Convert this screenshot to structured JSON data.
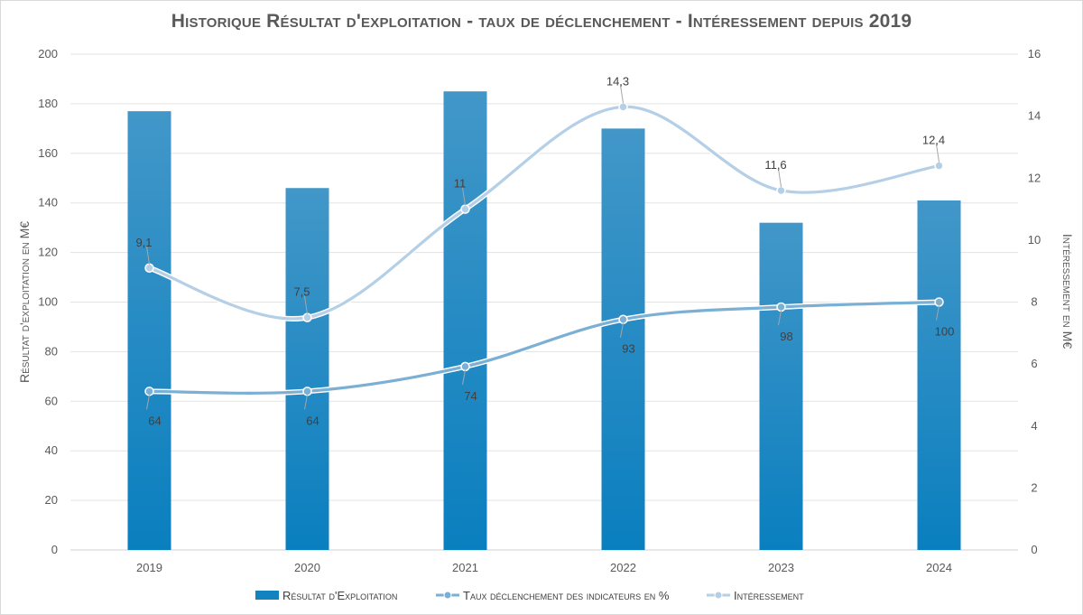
{
  "chart_data": {
    "type": "bar",
    "title": "Historique Résultat d'exploitation - taux de déclenchement - Intéressement depuis 2019",
    "categories": [
      "2019",
      "2020",
      "2021",
      "2022",
      "2023",
      "2024"
    ],
    "ylabel_left": "Résultat d'exploitation en M€",
    "ylabel_right": "Intéressement en M€",
    "ylim_left": [
      0,
      200
    ],
    "yticks_left": [
      0,
      20,
      40,
      60,
      80,
      100,
      120,
      140,
      160,
      180,
      200
    ],
    "ylim_right": [
      0,
      16
    ],
    "yticks_right": [
      0,
      2,
      4,
      6,
      8,
      10,
      12,
      14,
      16
    ],
    "grid": true,
    "legend_position": "bottom",
    "series": [
      {
        "name": "Résultat d'Exploitation",
        "type": "bar",
        "axis": "left",
        "values": [
          177,
          146,
          185,
          170,
          132,
          141
        ],
        "color": "#1383c0"
      },
      {
        "name": "Taux déclenchement des indicateurs en %",
        "type": "line",
        "axis": "left",
        "values": [
          64,
          64,
          74,
          93,
          98,
          100
        ],
        "labels": [
          "64",
          "64",
          "74",
          "93",
          "98",
          "100"
        ],
        "color": "#7bafd4"
      },
      {
        "name": "Intéressement",
        "type": "line",
        "axis": "right",
        "values": [
          9.1,
          7.5,
          11,
          14.3,
          11.6,
          12.4
        ],
        "labels": [
          "9,1",
          "7,5",
          "11",
          "14,3",
          "11,6",
          "12,4"
        ],
        "color": "#b4cfe6"
      }
    ]
  }
}
